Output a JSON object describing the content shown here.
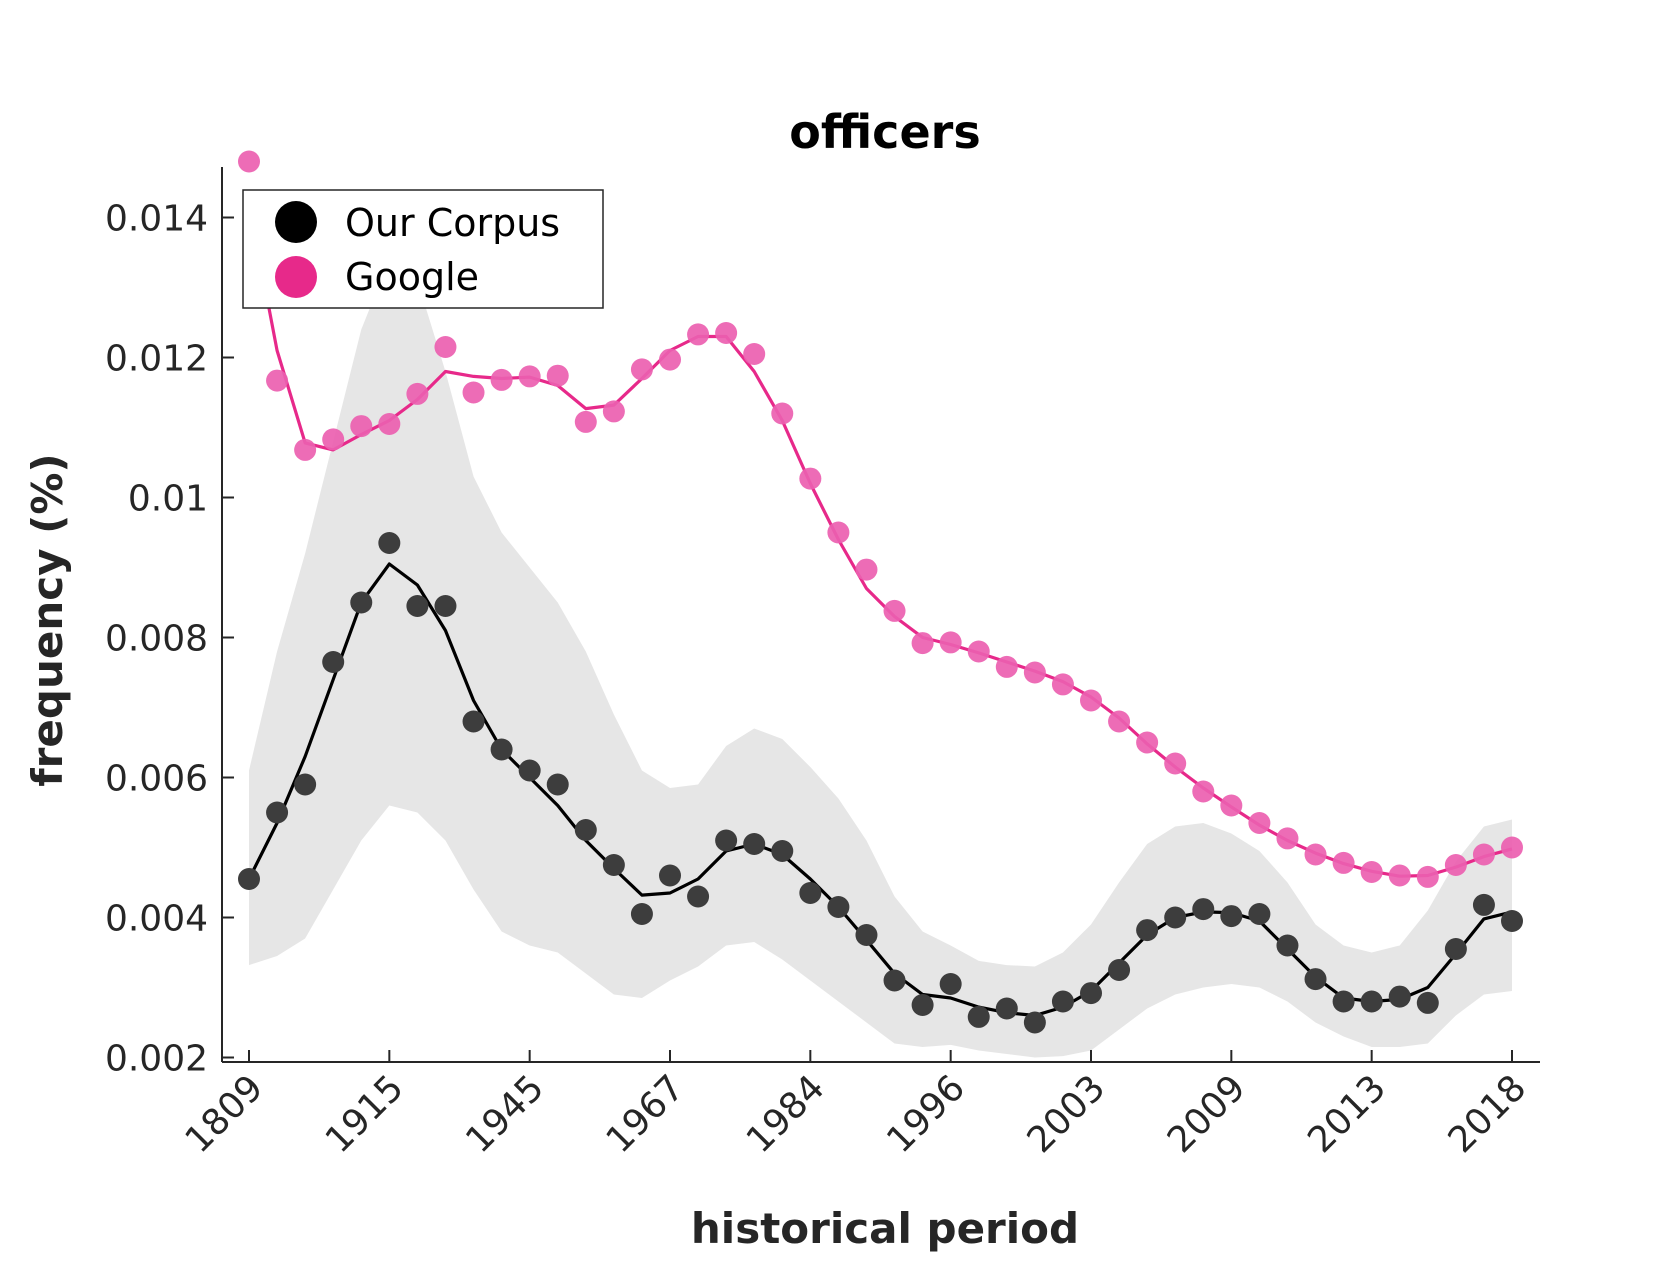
{
  "chart_data": {
    "type": "line",
    "title": "officers",
    "xlabel": "historical period",
    "ylabel": "frequency (%)",
    "x_tick_labels": [
      "1809",
      "1915",
      "1945",
      "1967",
      "1984",
      "1996",
      "2003",
      "2009",
      "2013",
      "2018"
    ],
    "y_ticks": [
      0.002,
      0.004,
      0.006,
      0.008,
      0.01,
      0.012,
      0.014
    ],
    "y_tick_labels": [
      "0.002",
      "0.004",
      "0.006",
      "0.008",
      "0.01",
      "0.012",
      "0.014"
    ],
    "ylim": [
      0.0019,
      0.0148
    ],
    "legend_position": "top-left",
    "colors": {
      "corpus": "#3d3d3d",
      "corpus_line": "#000000",
      "google": "#ec5fb0",
      "google_line": "#e7298a",
      "band": "#e6e6e6"
    },
    "series": [
      {
        "name": "Our Corpus",
        "marker_color": "#3d3d3d",
        "points": [
          0.00455,
          0.0055,
          0.0059,
          0.00765,
          0.0085,
          0.00935,
          0.00845,
          0.00845,
          0.0068,
          0.0064,
          0.0061,
          0.0059,
          0.00525,
          0.00475,
          0.00405,
          0.0046,
          0.0043,
          0.0051,
          0.00505,
          0.00495,
          0.00435,
          0.00415,
          0.00375,
          0.0031,
          0.00275,
          0.00305,
          0.00258,
          0.0027,
          0.0025,
          0.0028,
          0.00292,
          0.00325,
          0.00382,
          0.004,
          0.00412,
          0.00402,
          0.00405,
          0.0036,
          0.00312,
          0.0028,
          0.0028,
          0.00287,
          0.00278,
          0.00355,
          0.00418,
          0.00395
        ],
        "smoothed": [
          0.00455,
          0.00535,
          0.0063,
          0.0074,
          0.0085,
          0.00905,
          0.00875,
          0.0081,
          0.0071,
          0.0064,
          0.006,
          0.0056,
          0.0051,
          0.0047,
          0.00432,
          0.00435,
          0.00455,
          0.00495,
          0.00505,
          0.0049,
          0.00455,
          0.00415,
          0.00368,
          0.0032,
          0.0029,
          0.00285,
          0.00272,
          0.00264,
          0.0026,
          0.00272,
          0.00295,
          0.00335,
          0.00375,
          0.004,
          0.00408,
          0.00407,
          0.00395,
          0.00355,
          0.00315,
          0.00285,
          0.0028,
          0.00283,
          0.003,
          0.00348,
          0.00398,
          0.00408
        ],
        "band_upper": [
          0.0061,
          0.0078,
          0.0092,
          0.0108,
          0.0124,
          0.0134,
          0.0131,
          0.0118,
          0.0103,
          0.0095,
          0.009,
          0.0085,
          0.0078,
          0.0069,
          0.0061,
          0.00585,
          0.0059,
          0.00645,
          0.0067,
          0.00655,
          0.00615,
          0.0057,
          0.0051,
          0.0043,
          0.0038,
          0.0036,
          0.00338,
          0.00332,
          0.0033,
          0.0035,
          0.0039,
          0.0045,
          0.00505,
          0.0053,
          0.00535,
          0.0052,
          0.00495,
          0.0045,
          0.0039,
          0.0036,
          0.0035,
          0.0036,
          0.0041,
          0.0048,
          0.0053,
          0.0054
        ],
        "band_lower": [
          0.00332,
          0.00345,
          0.0037,
          0.0044,
          0.0051,
          0.0056,
          0.0055,
          0.0051,
          0.0044,
          0.0038,
          0.0036,
          0.0035,
          0.0032,
          0.0029,
          0.00285,
          0.0031,
          0.0033,
          0.0036,
          0.00365,
          0.0034,
          0.0031,
          0.0028,
          0.0025,
          0.0022,
          0.00215,
          0.00218,
          0.0021,
          0.00205,
          0.002,
          0.00202,
          0.0021,
          0.0024,
          0.0027,
          0.0029,
          0.003,
          0.00305,
          0.003,
          0.0028,
          0.0025,
          0.0023,
          0.00215,
          0.00215,
          0.0022,
          0.0026,
          0.0029,
          0.00295
        ]
      },
      {
        "name": "Google",
        "marker_color": "#ec5fb0",
        "points": [
          0.0148,
          0.01167,
          0.01068,
          0.01083,
          0.01102,
          0.01105,
          0.01148,
          0.01215,
          0.0115,
          0.01168,
          0.01173,
          0.01174,
          0.01108,
          0.01123,
          0.01183,
          0.01197,
          0.01233,
          0.01235,
          0.01205,
          0.0112,
          0.01027,
          0.0095,
          0.00897,
          0.00838,
          0.00792,
          0.00793,
          0.0078,
          0.00758,
          0.0075,
          0.00733,
          0.0071,
          0.0068,
          0.0065,
          0.0062,
          0.0058,
          0.0056,
          0.00535,
          0.00513,
          0.0049,
          0.00478,
          0.00465,
          0.0046,
          0.00458,
          0.00475,
          0.0049,
          0.005
        ],
        "smoothed": [
          0.0142,
          0.0121,
          0.01078,
          0.01068,
          0.0109,
          0.0111,
          0.0114,
          0.0118,
          0.01173,
          0.0117,
          0.01172,
          0.0116,
          0.01127,
          0.01132,
          0.0117,
          0.0121,
          0.0123,
          0.0123,
          0.0118,
          0.0111,
          0.0102,
          0.0094,
          0.0087,
          0.0083,
          0.008,
          0.0079,
          0.00778,
          0.00765,
          0.00752,
          0.00737,
          0.00715,
          0.00685,
          0.00648,
          0.00615,
          0.00585,
          0.00558,
          0.00532,
          0.0051,
          0.00492,
          0.00477,
          0.00466,
          0.00459,
          0.0046,
          0.00472,
          0.00487,
          0.00498
        ]
      }
    ]
  }
}
